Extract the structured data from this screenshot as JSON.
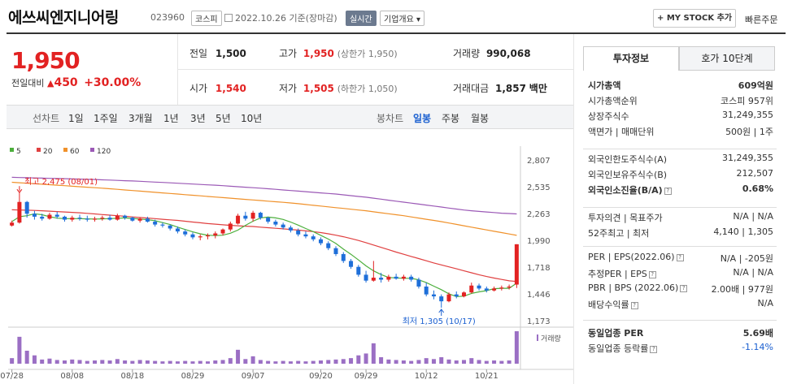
{
  "header": {
    "name": "에쓰씨엔지니어링",
    "code": "023960",
    "market": "코스피",
    "date": "2022.10.26",
    "basis": "기준(장마감)",
    "realtime": "실시간",
    "company_info": "기업개요",
    "mystock": "MY STOCK 추가",
    "quick_order": "빠른주문"
  },
  "quote": {
    "price": "1,950",
    "change_label": "전일대비",
    "change": "450",
    "change_pct": "+30.00%",
    "prev_label": "전일",
    "prev": "1,500",
    "high_label": "고가",
    "high": "1,950",
    "high_note": "(상한가 1,950)",
    "volume_label": "거래량",
    "volume": "990,068",
    "open_label": "시가",
    "open": "1,540",
    "low_label": "저가",
    "low": "1,505",
    "low_note": "(하한가 1,050)",
    "amount_label": "거래대금",
    "amount": "1,857",
    "amount_unit": "백만"
  },
  "tabs": {
    "line_label": "선차트",
    "periods": [
      "1일",
      "1주일",
      "3개월",
      "1년",
      "3년",
      "5년",
      "10년"
    ],
    "candle_label": "봉차트",
    "candle_periods": [
      "일봉",
      "주봉",
      "월봉"
    ],
    "selected_candle": "일봉"
  },
  "right_panel": {
    "tab_invest": "투자정보",
    "tab_ask": "호가 10단계",
    "rows_a": [
      {
        "label": "시가총액",
        "value": "609억원"
      },
      {
        "label": "시가총액순위",
        "value": "코스피 957위"
      },
      {
        "label": "상장주식수",
        "value": "31,249,355"
      },
      {
        "label": "액면가 | 매매단위",
        "value": "500원 | 1주"
      }
    ],
    "rows_b": [
      {
        "label": "외국인한도주식수(A)",
        "value": "31,249,355"
      },
      {
        "label": "외국인보유주식수(B)",
        "value": "212,507"
      },
      {
        "label": "외국인소진율(B/A)",
        "value": "0.68%"
      }
    ],
    "rows_c": [
      {
        "label": "투자의견 | 목표주가",
        "value": "N/A | N/A"
      },
      {
        "label": "52주최고 | 최저",
        "value": "4,140 | 1,305"
      }
    ],
    "rows_d": [
      {
        "label": "PER | EPS(2022.06)",
        "value": "N/A | -205원"
      },
      {
        "label": "추정PER | EPS",
        "value": "N/A | N/A"
      },
      {
        "label": "PBR | BPS (2022.06)",
        "value": "2.00배 | 977원"
      },
      {
        "label": "배당수익률",
        "value": "N/A"
      }
    ],
    "rows_e": [
      {
        "label": "동일업종 PER",
        "value": "5.69배"
      },
      {
        "label": "동일업종 등락률",
        "value": "-1.14%"
      }
    ]
  },
  "chart_data": {
    "type": "candlestick",
    "legend": [
      "5",
      "20",
      "60",
      "120"
    ],
    "legend_colors": [
      "#4caf3c",
      "#e04040",
      "#f0912a",
      "#9b59b6"
    ],
    "y_ticks": [
      "2,807",
      "2,535",
      "2,263",
      "1,990",
      "1,718",
      "1,446",
      "1,173"
    ],
    "ylim": [
      1173,
      2807
    ],
    "x_labels": [
      "07/28",
      "08/08",
      "08/18",
      "08/29",
      "09/07",
      "09/20",
      "09/29",
      "10/12",
      "10/21"
    ],
    "high_note": "최고 2,475 (08/01)",
    "low_note": "최저 1,305 (10/17)",
    "volume_label": "거래량",
    "candles": [
      [
        2140,
        2190,
        2130,
        2170
      ],
      [
        2170,
        2475,
        2160,
        2380
      ],
      [
        2380,
        2390,
        2220,
        2260
      ],
      [
        2260,
        2290,
        2200,
        2230
      ],
      [
        2230,
        2260,
        2190,
        2210
      ],
      [
        2210,
        2270,
        2200,
        2250
      ],
      [
        2250,
        2280,
        2210,
        2230
      ],
      [
        2230,
        2240,
        2180,
        2200
      ],
      [
        2200,
        2240,
        2180,
        2220
      ],
      [
        2220,
        2250,
        2190,
        2210
      ],
      [
        2210,
        2240,
        2180,
        2200
      ],
      [
        2200,
        2230,
        2180,
        2210
      ],
      [
        2210,
        2240,
        2190,
        2220
      ],
      [
        2220,
        2250,
        2190,
        2200
      ],
      [
        2200,
        2260,
        2190,
        2240
      ],
      [
        2240,
        2250,
        2200,
        2220
      ],
      [
        2220,
        2230,
        2180,
        2190
      ],
      [
        2190,
        2220,
        2170,
        2210
      ],
      [
        2210,
        2230,
        2170,
        2180
      ],
      [
        2180,
        2200,
        2130,
        2150
      ],
      [
        2150,
        2170,
        2120,
        2140
      ],
      [
        2140,
        2150,
        2090,
        2110
      ],
      [
        2110,
        2130,
        2060,
        2080
      ],
      [
        2080,
        2100,
        2030,
        2050
      ],
      [
        2050,
        2070,
        2000,
        2020
      ],
      [
        2020,
        2050,
        1990,
        2030
      ],
      [
        2030,
        2060,
        2000,
        2040
      ],
      [
        2040,
        2080,
        2010,
        2060
      ],
      [
        2060,
        2110,
        2040,
        2100
      ],
      [
        2100,
        2180,
        2080,
        2160
      ],
      [
        2160,
        2260,
        2150,
        2240
      ],
      [
        2240,
        2280,
        2190,
        2210
      ],
      [
        2210,
        2290,
        2180,
        2270
      ],
      [
        2270,
        2280,
        2200,
        2220
      ],
      [
        2220,
        2230,
        2160,
        2180
      ],
      [
        2180,
        2200,
        2130,
        2150
      ],
      [
        2150,
        2170,
        2100,
        2120
      ],
      [
        2120,
        2140,
        2070,
        2090
      ],
      [
        2090,
        2110,
        2030,
        2050
      ],
      [
        2050,
        2080,
        2010,
        2030
      ],
      [
        2030,
        2050,
        1980,
        2000
      ],
      [
        2000,
        2020,
        1940,
        1960
      ],
      [
        1960,
        1980,
        1890,
        1910
      ],
      [
        1910,
        1930,
        1830,
        1850
      ],
      [
        1850,
        1870,
        1760,
        1780
      ],
      [
        1780,
        1800,
        1700,
        1720
      ],
      [
        1720,
        1740,
        1620,
        1640
      ],
      [
        1640,
        1680,
        1560,
        1580
      ],
      [
        1580,
        1780,
        1570,
        1610
      ],
      [
        1610,
        1660,
        1560,
        1590
      ],
      [
        1590,
        1640,
        1570,
        1620
      ],
      [
        1620,
        1650,
        1590,
        1600
      ],
      [
        1600,
        1640,
        1580,
        1620
      ],
      [
        1620,
        1640,
        1570,
        1590
      ],
      [
        1590,
        1610,
        1500,
        1520
      ],
      [
        1520,
        1560,
        1420,
        1440
      ],
      [
        1440,
        1480,
        1390,
        1420
      ],
      [
        1420,
        1440,
        1305,
        1370
      ],
      [
        1370,
        1460,
        1360,
        1440
      ],
      [
        1440,
        1470,
        1400,
        1420
      ],
      [
        1420,
        1470,
        1410,
        1460
      ],
      [
        1460,
        1560,
        1450,
        1530
      ],
      [
        1530,
        1550,
        1480,
        1500
      ],
      [
        1500,
        1520,
        1460,
        1480
      ],
      [
        1480,
        1520,
        1470,
        1500
      ],
      [
        1500,
        1530,
        1480,
        1510
      ],
      [
        1510,
        1540,
        1490,
        1520
      ],
      [
        1540,
        1950,
        1505,
        1950
      ]
    ],
    "volumes": [
      12,
      58,
      28,
      18,
      9,
      11,
      8,
      7,
      9,
      8,
      6,
      7,
      8,
      7,
      10,
      7,
      6,
      8,
      7,
      6,
      5,
      6,
      5,
      6,
      5,
      6,
      5,
      7,
      8,
      12,
      30,
      10,
      16,
      8,
      6,
      5,
      6,
      5,
      6,
      5,
      6,
      7,
      8,
      9,
      10,
      12,
      18,
      22,
      44,
      14,
      9,
      8,
      7,
      6,
      8,
      12,
      10,
      14,
      9,
      7,
      8,
      12,
      8,
      6,
      7,
      6,
      7,
      70
    ],
    "ma5": [
      2180,
      2230,
      2240,
      2260,
      2250,
      2230,
      2215,
      2210,
      2210,
      2210,
      2208,
      2206,
      2208,
      2210,
      2214,
      2218,
      2212,
      2206,
      2200,
      2190,
      2170,
      2150,
      2124,
      2100,
      2076,
      2056,
      2042,
      2038,
      2042,
      2062,
      2094,
      2142,
      2184,
      2218,
      2226,
      2218,
      2202,
      2176,
      2144,
      2110,
      2078,
      2040,
      2002,
      1958,
      1900,
      1848,
      1790,
      1730,
      1680,
      1642,
      1612,
      1608,
      1604,
      1604,
      1588,
      1560,
      1524,
      1488,
      1446,
      1418,
      1422,
      1450,
      1466,
      1478,
      1498,
      1502,
      1502,
      1554
    ],
    "ma20": [
      2300,
      2298,
      2296,
      2294,
      2290,
      2286,
      2282,
      2278,
      2274,
      2270,
      2264,
      2258,
      2252,
      2246,
      2240,
      2234,
      2228,
      2222,
      2216,
      2210,
      2204,
      2198,
      2192,
      2184,
      2176,
      2168,
      2160,
      2154,
      2148,
      2142,
      2138,
      2134,
      2130,
      2124,
      2118,
      2112,
      2106,
      2100,
      2094,
      2086,
      2078,
      2068,
      2056,
      2042,
      2026,
      2008,
      1988,
      1966,
      1942,
      1918,
      1894,
      1870,
      1848,
      1826,
      1804,
      1782,
      1760,
      1740,
      1720,
      1700,
      1680,
      1660,
      1640,
      1622,
      1606,
      1592,
      1578,
      1572
    ],
    "ma60": [
      2580,
      2575,
      2570,
      2565,
      2560,
      2555,
      2550,
      2545,
      2540,
      2535,
      2530,
      2525,
      2520,
      2514,
      2508,
      2502,
      2496,
      2490,
      2484,
      2478,
      2472,
      2466,
      2460,
      2454,
      2448,
      2442,
      2436,
      2430,
      2424,
      2418,
      2412,
      2406,
      2400,
      2394,
      2388,
      2382,
      2376,
      2370,
      2362,
      2354,
      2346,
      2338,
      2330,
      2322,
      2314,
      2306,
      2298,
      2290,
      2280,
      2270,
      2260,
      2250,
      2240,
      2228,
      2216,
      2204,
      2192,
      2180,
      2166,
      2152,
      2138,
      2124,
      2110,
      2096,
      2082,
      2068,
      2054,
      2040
    ],
    "ma120": [
      2630,
      2628,
      2626,
      2624,
      2622,
      2620,
      2618,
      2616,
      2614,
      2612,
      2610,
      2608,
      2605,
      2602,
      2599,
      2596,
      2593,
      2590,
      2586,
      2582,
      2578,
      2574,
      2570,
      2566,
      2562,
      2558,
      2554,
      2550,
      2545,
      2540,
      2535,
      2530,
      2525,
      2520,
      2514,
      2508,
      2502,
      2496,
      2490,
      2484,
      2478,
      2472,
      2466,
      2460,
      2452,
      2444,
      2436,
      2428,
      2418,
      2408,
      2398,
      2388,
      2378,
      2368,
      2358,
      2348,
      2338,
      2328,
      2318,
      2308,
      2298,
      2290,
      2284,
      2278,
      2272,
      2266,
      2262,
      2258
    ]
  }
}
